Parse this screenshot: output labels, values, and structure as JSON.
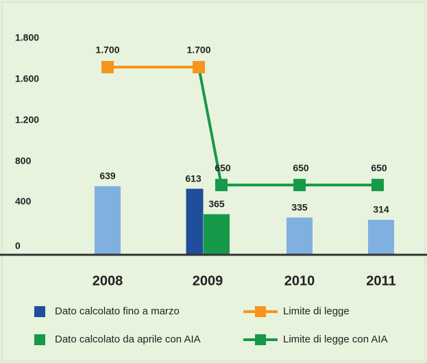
{
  "chart_data": {
    "type": "bar",
    "categories": [
      "2008",
      "2009",
      "2010",
      "2011"
    ],
    "ylim": [
      0,
      1800
    ],
    "yticks": [
      0,
      400,
      800,
      {
        "value": 1200,
        "label": "1.200"
      },
      {
        "value": 1600,
        "label": "1.600"
      },
      {
        "value": 1800,
        "label": "1.800"
      }
    ],
    "series": [
      {
        "color": "#7fb0e0",
        "values": [
          639,
          null,
          335,
          314
        ]
      },
      {
        "name": "Dato calcolato fino a marzo",
        "color": "#1f4e9a",
        "values": [
          null,
          613,
          null,
          null
        ]
      },
      {
        "name": "Dato calcolato da aprile con AIA",
        "color": "#17994a",
        "values": [
          null,
          365,
          null,
          null
        ]
      }
    ],
    "lines": [
      {
        "name": "Limite di legge",
        "color": "#f7941d",
        "values": [
          1700,
          1700,
          null,
          null
        ],
        "value_labels": [
          "1.700",
          "1.700",
          null,
          null
        ]
      },
      {
        "name": "Limite di legge con AIA",
        "color": "#17994a",
        "values": [
          null,
          650,
          650,
          650
        ]
      }
    ]
  }
}
